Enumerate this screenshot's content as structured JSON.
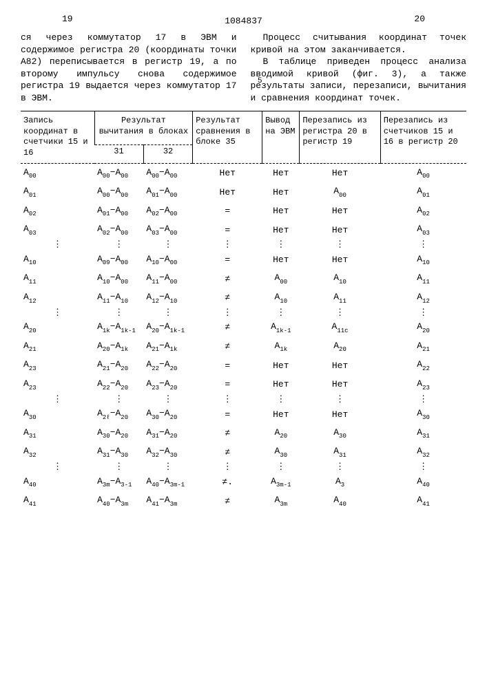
{
  "page_left": "19",
  "page_right": "20",
  "doc_number": "1084837",
  "margin_label": "5",
  "left_text": "ся через коммутатор 17 в ЭВМ и содержимое регистра 20 (координаты точки A82) переписывается в регистр 19, а по второму импульсу снова содержимое регистра 19 выдается через коммутатор 17 в ЭВМ.",
  "right_text_p1": "Процесс считывания координат точек кривой на этом заканчивается.",
  "right_text_p2": "В таблице приведен процесс анализа вводимой кривой (фиг. 3), а также результаты записи, перезаписи, вычитания и сравнения координат точек.",
  "headers": {
    "h1": "Запись координат в счетчики 15 и 16",
    "h2": "Результат вычитания в блоках",
    "h2a": "31",
    "h2b": "32",
    "h3": "Результат сравнения в блоке 35",
    "h4": "Вывод на ЭВМ",
    "h5": "Перезапись из регистра 20 в регистр 19",
    "h6": "Перезапись из счетчиков 15 и 16 в регистр 20"
  },
  "rows": [
    {
      "c1": "A|00",
      "c2": "A|00|−A|00",
      "c3": "A|00|−A|00",
      "c4": "Нет",
      "c5": "Нет",
      "c6": "Нет",
      "c7": "A|00"
    },
    {
      "c1": "A|01",
      "c2": "A|00|−A|00",
      "c3": "A|01|−A|00",
      "c4": "Нет",
      "c5": "Нет",
      "c6": "A|00",
      "c7": "A|01"
    },
    {
      "c1": "A|02",
      "c2": "A|01|−A|00",
      "c3": "A|02|−A|00",
      "c4": "=",
      "c5": "Нет",
      "c6": "Нет",
      "c7": "A|02"
    },
    {
      "c1": "A|03",
      "c2": "A|02|−A|00",
      "c3": "A|03|−A|00",
      "c4": "=",
      "c5": "Нет",
      "c6": "Нет",
      "c7": "A|03"
    },
    {
      "dots": true
    },
    {
      "c1": "A|10",
      "c2": "A|09|−A|00",
      "c3": "A|10|−A|00",
      "c4": "=",
      "c5": "Нет",
      "c6": "Нет",
      "c7": "A|10"
    },
    {
      "c1": "A|11",
      "c2": "A|10|−A|00",
      "c3": "A|11|−A|00",
      "c4": "≠",
      "c5": "A|00",
      "c6": "A|10",
      "c7": "A|11"
    },
    {
      "c1": "A|12",
      "c2": "A|11|−A|10",
      "c3": "A|12|−A|10",
      "c4": "≠",
      "c5": "A|10",
      "c6": "A|11",
      "c7": "A|12"
    },
    {
      "dots": true
    },
    {
      "c1": "A|20",
      "c2": "A|1k|−A|1k-1",
      "c3": "A|20|−A|1k-1",
      "c4": "≠",
      "c5": "A|1k-1",
      "c6": "A|11c",
      "c7": "A|20"
    },
    {
      "c1": "A|21",
      "c2": "A|20|−A|1k",
      "c3": "A|21|−A|1k",
      "c4": "≠",
      "c5": "A|1k",
      "c6": "A|20",
      "c7": "A|21"
    },
    {
      "c1": "A|23",
      "c2": "A|21|−A|20",
      "c3": "A|22|−A|20",
      "c4": "=",
      "c5": "Нет",
      "c6": "Нет",
      "c7": "A|22"
    },
    {
      "c1": "A|23",
      "c2": "A|22|−A|20",
      "c3": "A|23|−A|20",
      "c4": "=",
      "c5": "Нет",
      "c6": "Нет",
      "c7": "A|23"
    },
    {
      "dots": true
    },
    {
      "c1": "A|30",
      "c2": "A|2ℓ|−A|20",
      "c3": "A|30|−A|20",
      "c4": "=",
      "c5": "Нет",
      "c6": "Нет",
      "c7": "A|30"
    },
    {
      "c1": "A|31",
      "c2": "A|30|−A|20",
      "c3": "A|31|−A|20",
      "c4": "≠",
      "c5": "A|20",
      "c6": "A|30",
      "c7": "A|31"
    },
    {
      "c1": "A|32",
      "c2": "A|31|−A|30",
      "c3": "A|32|−A|30",
      "c4": "≠",
      "c5": "A|30",
      "c6": "A|31",
      "c7": "A|32"
    },
    {
      "dots": true
    },
    {
      "c1": "A|40",
      "c2": "A|3m|−A|3-1",
      "c3": "A|40|−A|3m-1",
      "c4": "≠.",
      "c5": "A|3m-1",
      "c6": "A|3",
      "c7": "A|40"
    },
    {
      "c1": "A|41",
      "c2": "A|40|−A|3m",
      "c3": "A|41|−A|3m",
      "c4": "≠",
      "c5": "A|3m",
      "c6": "A|40",
      "c7": "A|41"
    }
  ]
}
